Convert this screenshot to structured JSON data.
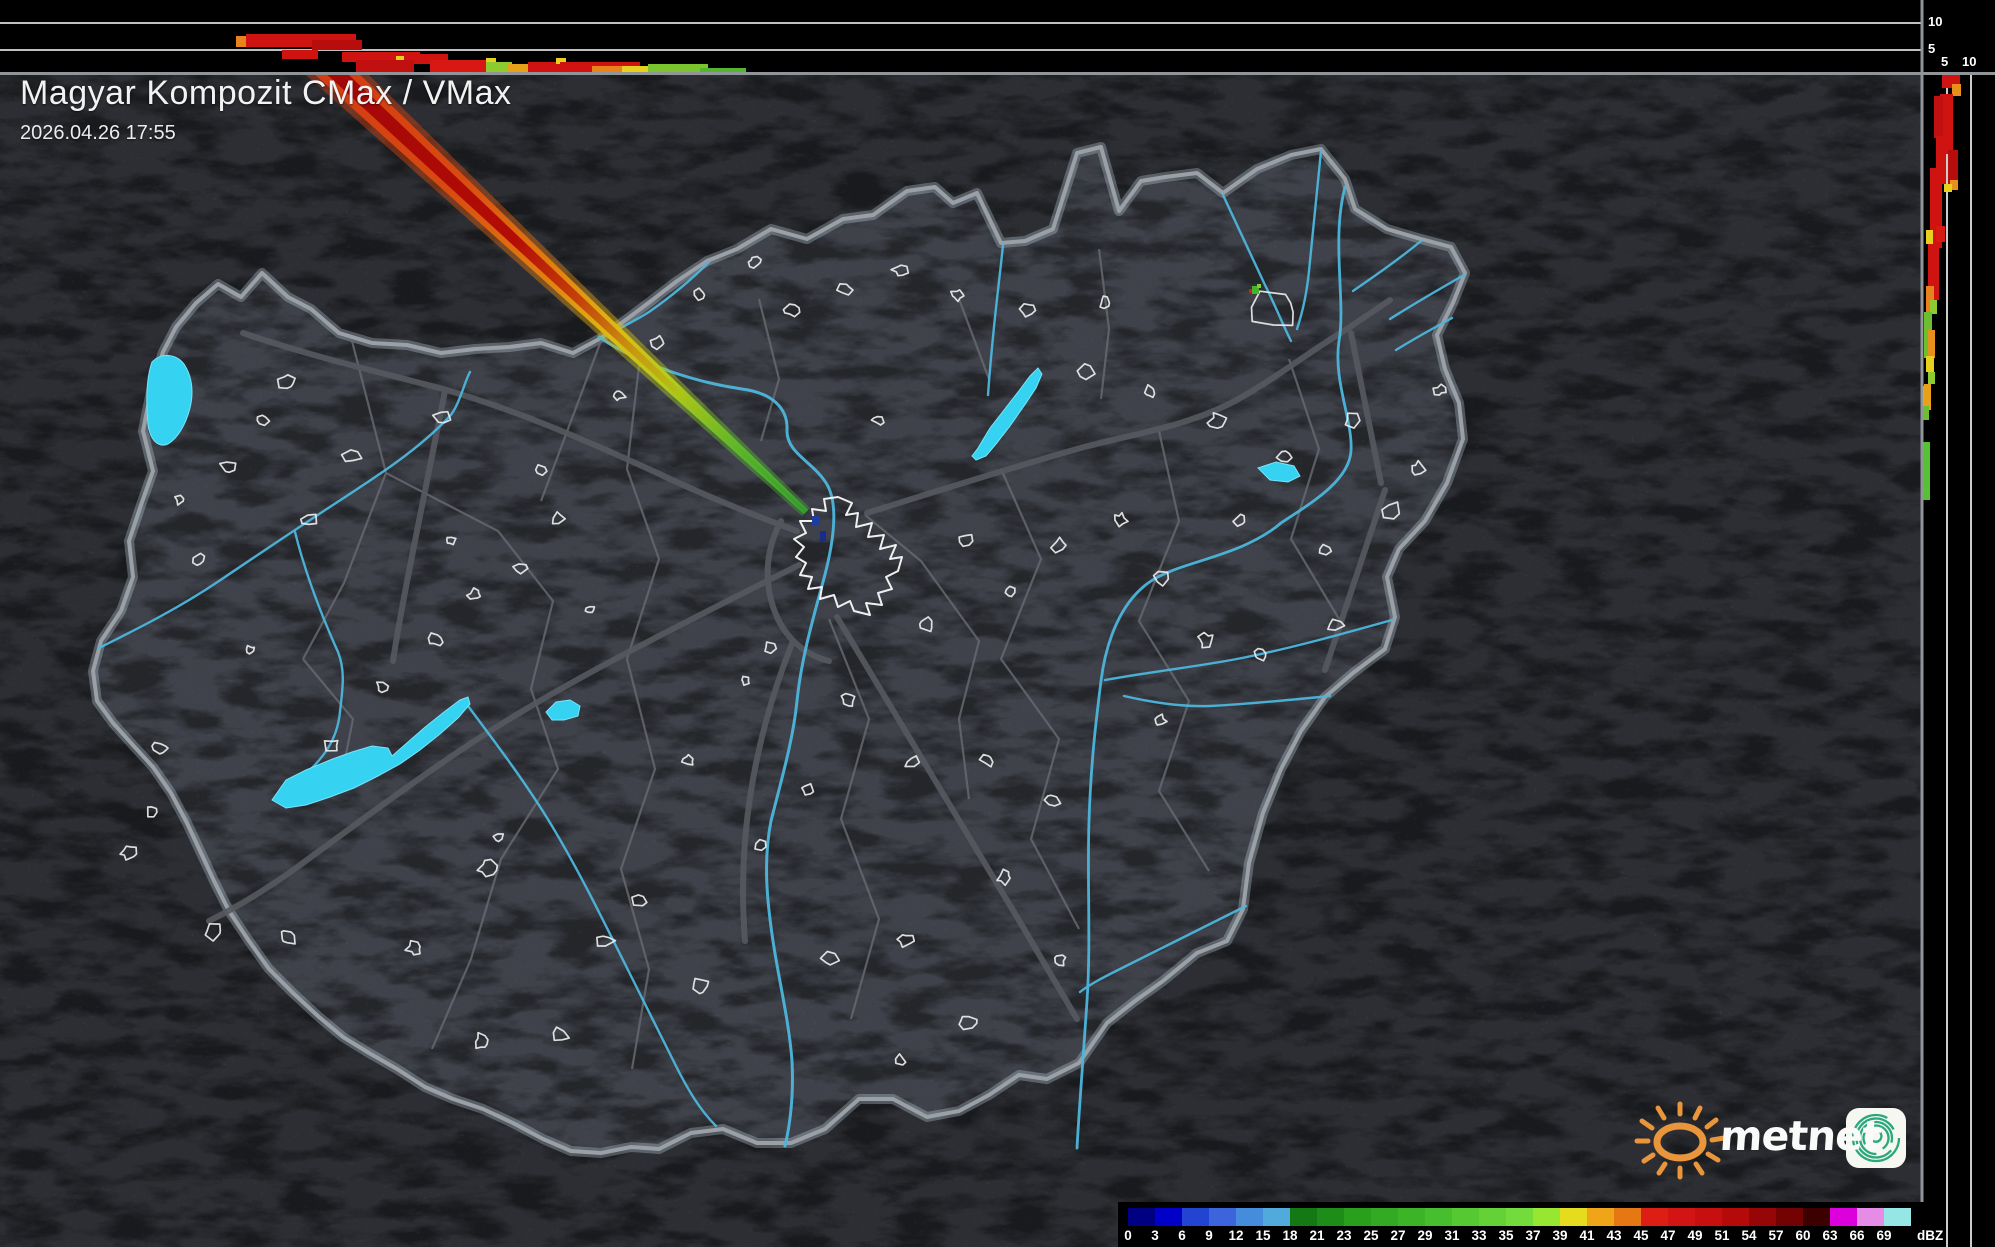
{
  "header": {
    "title": "Magyar Kompozit CMax / VMax",
    "timestamp": "2026.04.26 17:55"
  },
  "profiles": {
    "top": {
      "tick_labels": [
        "10",
        "5"
      ]
    },
    "right": {
      "tick_labels": [
        "5",
        "10"
      ]
    }
  },
  "legend": {
    "unit": "dBZ",
    "tick_labels": [
      "0",
      "3",
      "6",
      "9",
      "12",
      "15",
      "18",
      "21",
      "23",
      "25",
      "27",
      "29",
      "31",
      "33",
      "35",
      "37",
      "39",
      "41",
      "43",
      "45",
      "47",
      "49",
      "51",
      "54",
      "57",
      "60",
      "63",
      "66",
      "69",
      "dBZ"
    ],
    "colors": [
      "#000082",
      "#0000C8",
      "#2344D2",
      "#3C64DC",
      "#468CDC",
      "#50AADC",
      "#147814",
      "#1E8C19",
      "#28A01E",
      "#32AA23",
      "#3CB428",
      "#46BE2D",
      "#55C832",
      "#64D237",
      "#73DC3C",
      "#96E632",
      "#E6DC1E",
      "#F0A519",
      "#E67814",
      "#DC1E14",
      "#D21414",
      "#C80F0F",
      "#B40A0A",
      "#960606",
      "#730303",
      "#3C0000",
      "#DC00DC",
      "#E68CE6",
      "#96E6E6"
    ]
  },
  "branding": {
    "wordmark": "metnet",
    "sun_color": "#E8953C",
    "spiral_color": "#2AA87C"
  },
  "palette": {
    "lake_cyan": "#35D2F2",
    "river_blue": "#4DB6DC",
    "border_gray": "#9AA0A6",
    "beam_core_red": "#B30C06"
  }
}
